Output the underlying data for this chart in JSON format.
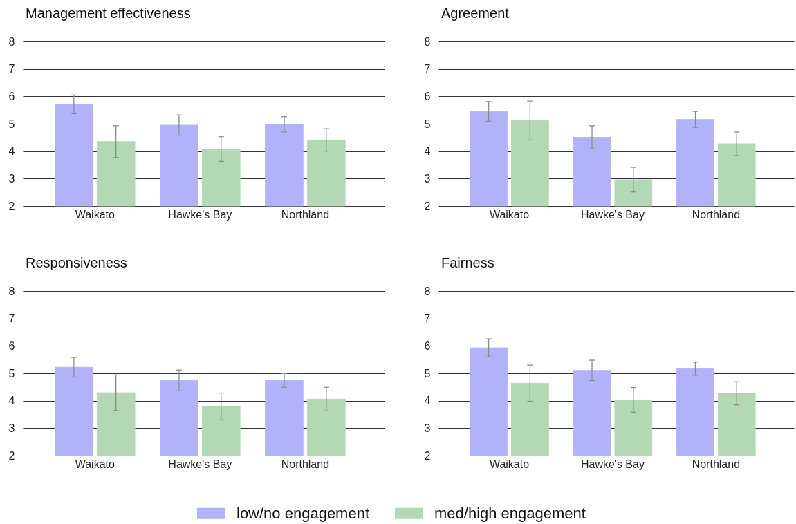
{
  "chart_data": [
    {
      "type": "bar",
      "title": "Management effectiveness",
      "categories": [
        "Waikato",
        "Hawke's Bay",
        "Northland"
      ],
      "series": [
        {
          "name": "low/no engagement",
          "color": "#b2b2fa",
          "values": [
            5.71,
            4.95,
            4.98
          ],
          "errors": [
            0.34,
            0.37,
            0.28
          ]
        },
        {
          "name": "med/high engagement",
          "color": "#b2d9b4",
          "values": [
            4.35,
            4.08,
            4.41
          ],
          "errors": [
            0.58,
            0.45,
            0.41
          ]
        }
      ],
      "ylim": [
        2,
        8
      ],
      "yticks": [
        2,
        3,
        4,
        5,
        6,
        7,
        8
      ],
      "grid": "y",
      "legend": "bottom"
    },
    {
      "type": "bar",
      "title": "Agreement",
      "categories": [
        "Waikato",
        "Hawke's Bay",
        "Northland"
      ],
      "series": [
        {
          "color": "#b2b2fa",
          "values": [
            5.45,
            4.51,
            5.16
          ],
          "errors": [
            0.36,
            0.42,
            0.29
          ]
        },
        {
          "color": "#b2d9b4",
          "values": [
            5.12,
            2.96,
            4.27
          ],
          "errors": [
            0.71,
            0.45,
            0.43
          ]
        }
      ],
      "ylim": [
        2,
        8
      ],
      "yticks": [
        2,
        3,
        4,
        5,
        6,
        7,
        8
      ],
      "grid": "y"
    },
    {
      "type": "bar",
      "title": "Responsiveness",
      "categories": [
        "Waikato",
        "Hawke's Bay",
        "Northland"
      ],
      "series": [
        {
          "color": "#b2b2fa",
          "values": [
            5.22,
            4.74,
            4.74
          ],
          "errors": [
            0.36,
            0.38,
            0.25
          ]
        },
        {
          "color": "#b2d9b4",
          "values": [
            4.29,
            3.79,
            4.06
          ],
          "errors": [
            0.65,
            0.49,
            0.43
          ]
        }
      ],
      "ylim": [
        2,
        8
      ],
      "yticks": [
        2,
        3,
        4,
        5,
        6,
        7,
        8
      ],
      "grid": "y"
    },
    {
      "type": "bar",
      "title": "Fairness",
      "categories": [
        "Waikato",
        "Hawke's Bay",
        "Northland"
      ],
      "series": [
        {
          "color": "#b2b2fa",
          "values": [
            5.93,
            5.11,
            5.17
          ],
          "errors": [
            0.33,
            0.37,
            0.24
          ]
        },
        {
          "color": "#b2d9b4",
          "values": [
            4.64,
            4.03,
            4.27
          ],
          "errors": [
            0.66,
            0.45,
            0.42
          ]
        }
      ],
      "ylim": [
        2,
        8
      ],
      "yticks": [
        2,
        3,
        4,
        5,
        6,
        7,
        8
      ],
      "grid": "y"
    }
  ]
}
